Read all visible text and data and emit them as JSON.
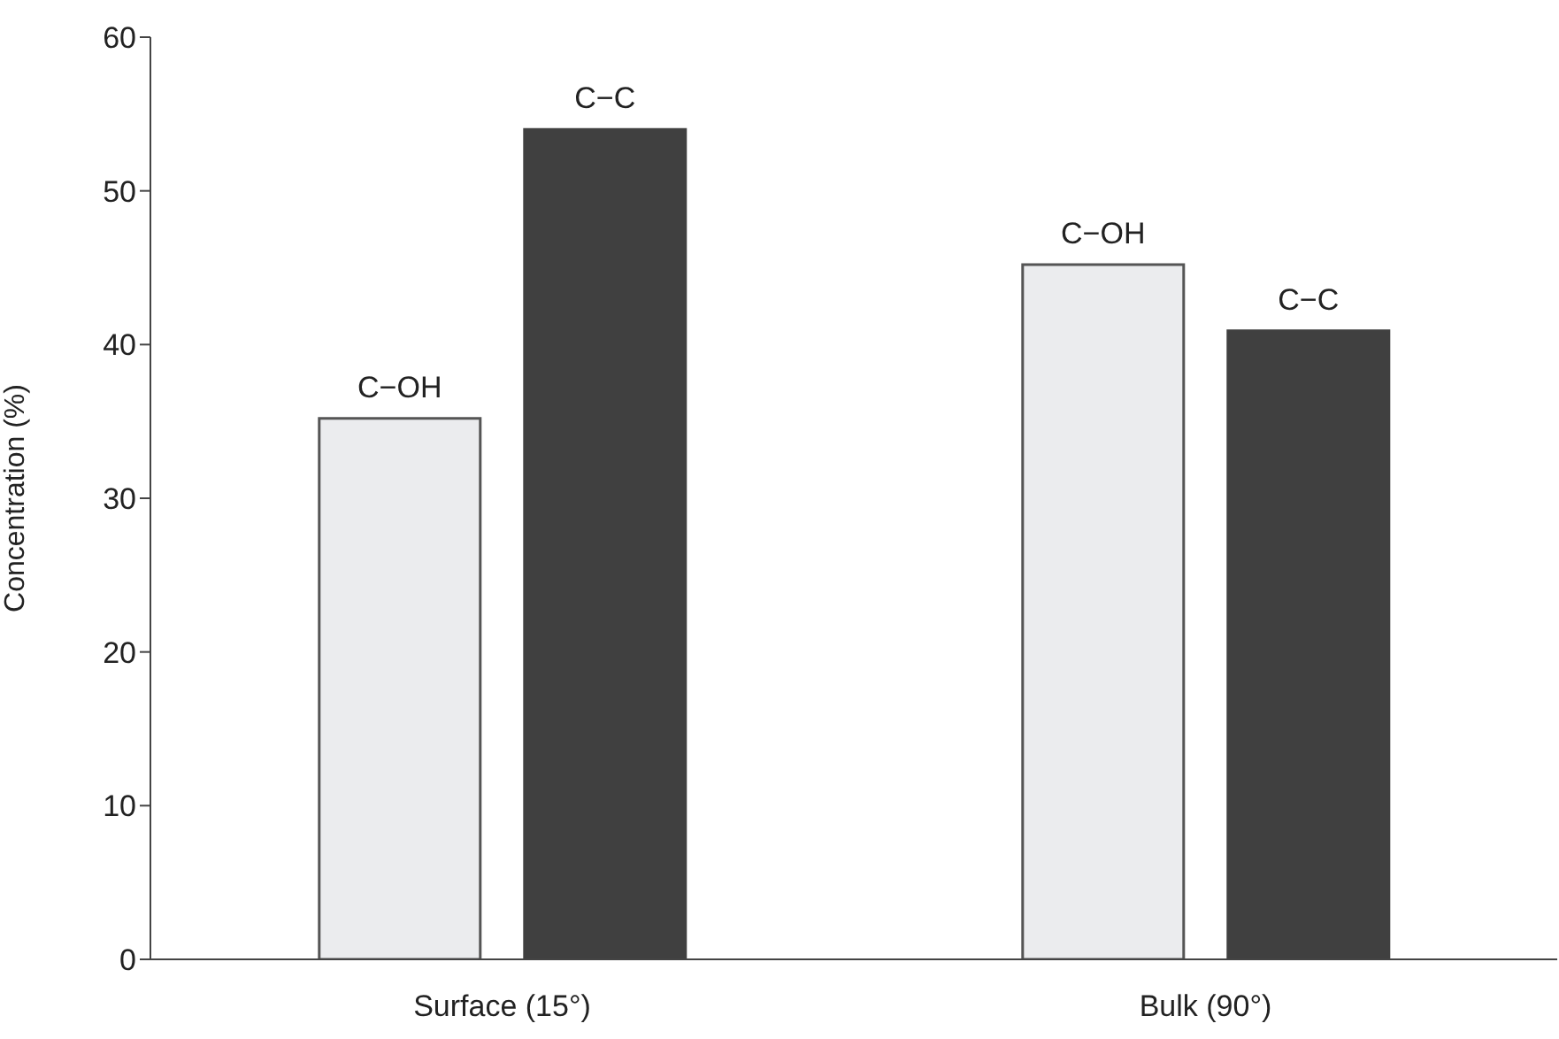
{
  "chart_data": {
    "type": "bar",
    "ylabel": "Concentration (%)",
    "categories": [
      "Surface (15°)",
      "Bulk (90°)"
    ],
    "series": [
      {
        "name": "C−OH",
        "color": "#ebecee",
        "values": [
          35.2,
          45.2
        ]
      },
      {
        "name": "C−C",
        "color": "#404040",
        "values": [
          54.0,
          40.9
        ]
      }
    ],
    "ylim": [
      0,
      60
    ],
    "yticks": [
      0,
      10,
      20,
      30,
      40,
      50,
      60
    ],
    "grid": false,
    "legend": false
  }
}
